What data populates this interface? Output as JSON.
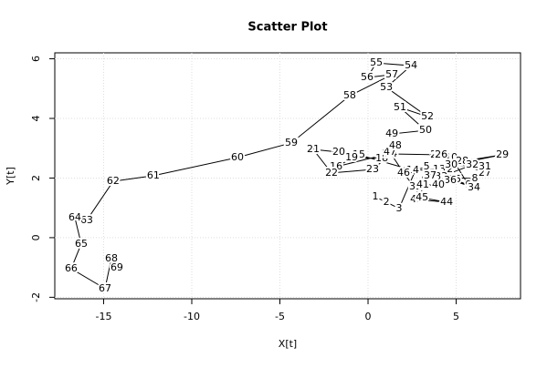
{
  "chart_data": {
    "type": "scatter",
    "title": "Scatter Plot",
    "x_label": "X[t]",
    "y_label": "Y[t]",
    "xlim": [
      -17.77,
      8.65
    ],
    "ylim": [
      -2.05,
      6.2
    ],
    "xticks": [
      -15,
      -10,
      -5,
      0,
      5
    ],
    "yticks": [
      -2,
      0,
      2,
      4,
      6
    ],
    "grid": true,
    "connected": true,
    "color": "#000000",
    "labels": [
      "1",
      "2",
      "3",
      "4",
      "5",
      "6",
      "7",
      "8",
      "9",
      "10",
      "11",
      "12",
      "13",
      "14",
      "15",
      "16",
      "17",
      "18",
      "19",
      "20",
      "21",
      "22",
      "23",
      "24",
      "25",
      "26",
      "27",
      "28",
      "29",
      "30",
      "31",
      "32",
      "33",
      "34",
      "35",
      "36",
      "37",
      "38",
      "39",
      "40",
      "41",
      "42",
      "43",
      "44",
      "45",
      "46",
      "47",
      "48",
      "49",
      "50",
      "51",
      "52",
      "53",
      "54",
      "55",
      "56",
      "57",
      "58",
      "59",
      "60",
      "61",
      "62",
      "63",
      "64",
      "65",
      "66",
      "67",
      "68",
      "69"
    ],
    "x": [
      0.41,
      1.04,
      1.76,
      2.69,
      3.32,
      3.16,
      3.47,
      6.06,
      5.7,
      4.72,
      4.25,
      4.46,
      4.04,
      2.54,
      -0.52,
      -1.81,
      1.14,
      0.78,
      -0.93,
      -1.66,
      -3.11,
      -2.07,
      0.26,
      1.3,
      3.89,
      4.15,
      6.63,
      5.34,
      7.62,
      4.72,
      6.63,
      5.91,
      4.15,
      6.01,
      4.92,
      4.66,
      3.52,
      3.06,
      2.69,
      3.99,
      3.11,
      2.95,
      2.75,
      4.46,
      3.06,
      2.02,
      1.24,
      1.55,
      1.35,
      3.26,
      1.81,
      3.37,
      1.04,
      2.44,
      0.47,
      -0.05,
      1.35,
      -1.04,
      -4.35,
      -7.41,
      -12.18,
      -14.46,
      -15.96,
      -16.63,
      -16.27,
      -16.84,
      -14.92,
      -14.56,
      -14.25
    ],
    "values": [
      1.37,
      1.19,
      0.98,
      2.26,
      2.38,
      1.92,
      2.05,
      1.98,
      1.77,
      2.69,
      2.23,
      2.29,
      2.29,
      2.26,
      2.78,
      2.38,
      2.81,
      2.66,
      2.69,
      2.87,
      2.96,
      2.17,
      2.29,
      2.81,
      2.78,
      2.78,
      2.17,
      2.56,
      2.78,
      2.44,
      2.38,
      2.44,
      2.05,
      1.68,
      1.95,
      1.92,
      2.08,
      1.71,
      1.71,
      1.77,
      1.77,
      1.31,
      1.28,
      1.19,
      1.34,
      2.17,
      2.87,
      3.08,
      3.48,
      3.6,
      4.37,
      4.06,
      5.04,
      5.77,
      5.86,
      5.37,
      5.47,
      4.76,
      3.18,
      2.69,
      2.08,
      1.89,
      0.58,
      0.67,
      -0.21,
      -1.04,
      -1.71,
      -0.7,
      -1.01
    ]
  }
}
